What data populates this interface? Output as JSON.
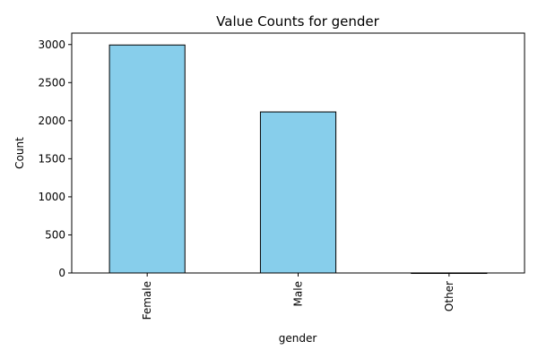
{
  "chart_data": {
    "type": "bar",
    "title": "Value Counts for gender",
    "xlabel": "gender",
    "ylabel": "Count",
    "categories": [
      "Female",
      "Male",
      "Other"
    ],
    "values": [
      2994,
      2115,
      1
    ],
    "ylim": [
      0,
      3150
    ],
    "yticks": [
      0,
      500,
      1000,
      1500,
      2000,
      2500,
      3000
    ],
    "bar_color": "#87CEEB",
    "edge_color": "#000000",
    "grid": false,
    "legend": "none"
  }
}
